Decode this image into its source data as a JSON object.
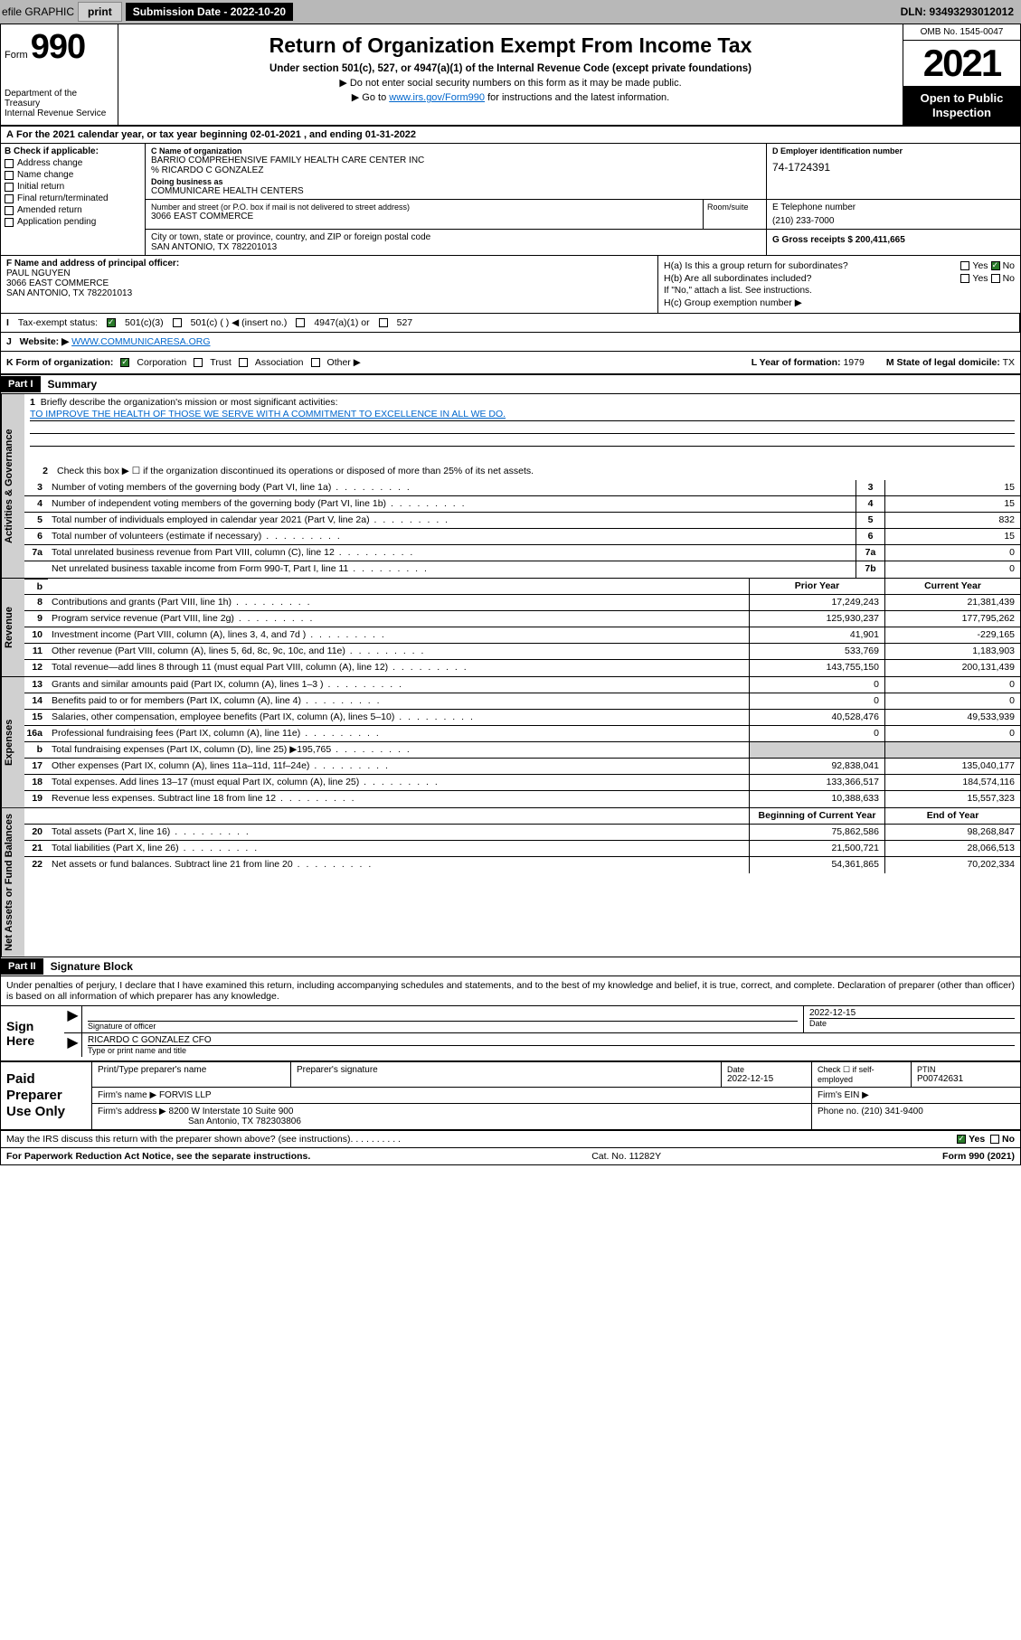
{
  "topbar": {
    "efile_label": "efile GRAPHIC",
    "print_btn": "print",
    "submission_label": "Submission Date - 2022-10-20",
    "dln": "DLN: 93493293012012"
  },
  "header": {
    "form_word": "Form",
    "form_number": "990",
    "dept": "Department of the Treasury\nInternal Revenue Service",
    "title": "Return of Organization Exempt From Income Tax",
    "sub": "Under section 501(c), 527, or 4947(a)(1) of the Internal Revenue Code (except private foundations)",
    "note1": "Do not enter social security numbers on this form as it may be made public.",
    "note2_pre": "Go to ",
    "note2_link": "www.irs.gov/Form990",
    "note2_post": " for instructions and the latest information.",
    "omb": "OMB No. 1545-0047",
    "year": "2021",
    "open_public": "Open to Public Inspection"
  },
  "period": "For the 2021 calendar year, or tax year beginning 02-01-2021   , and ending 01-31-2022",
  "box_b": {
    "label": "B Check if applicable:",
    "items": [
      "Address change",
      "Name change",
      "Initial return",
      "Final return/terminated",
      "Amended return",
      "Application pending"
    ]
  },
  "box_c": {
    "name_label": "C Name of organization",
    "org_name": "BARRIO COMPREHENSIVE FAMILY HEALTH CARE CENTER INC",
    "care_of": "% RICARDO C GONZALEZ",
    "dba_label": "Doing business as",
    "dba": "COMMUNICARE HEALTH CENTERS",
    "addr_label": "Number and street (or P.O. box if mail is not delivered to street address)",
    "addr": "3066 EAST COMMERCE",
    "room_label": "Room/suite",
    "city_label": "City or town, state or province, country, and ZIP or foreign postal code",
    "city": "SAN ANTONIO, TX  782201013"
  },
  "box_d": {
    "label": "D Employer identification number",
    "value": "74-1724391"
  },
  "box_e": {
    "label": "E Telephone number",
    "value": "(210) 233-7000"
  },
  "box_g": {
    "label": "G Gross receipts $",
    "value": "200,411,665"
  },
  "box_f": {
    "label": "F Name and address of principal officer:",
    "name": "PAUL NGUYEN",
    "addr1": "3066 EAST COMMERCE",
    "addr2": "SAN ANTONIO, TX  782201013"
  },
  "box_h": {
    "ha": "H(a)  Is this a group return for subordinates?",
    "hb": "H(b)  Are all subordinates included?",
    "hb_note": "If \"No,\" attach a list. See instructions.",
    "hc": "H(c)  Group exemption number ▶"
  },
  "row_i": {
    "label": "Tax-exempt status:",
    "opt1": "501(c)(3)",
    "opt2": "501(c) (   ) ◀ (insert no.)",
    "opt3": "4947(a)(1) or",
    "opt4": "527"
  },
  "row_j": {
    "label": "Website: ▶",
    "value": "WWW.COMMUNICARESA.ORG"
  },
  "row_k": {
    "label": "K Form of organization:",
    "opts": [
      "Corporation",
      "Trust",
      "Association",
      "Other ▶"
    ]
  },
  "row_l": {
    "label": "L Year of formation:",
    "value": "1979"
  },
  "row_m": {
    "label": "M State of legal domicile:",
    "value": "TX"
  },
  "part1": {
    "hdr": "Part I",
    "title": "Summary"
  },
  "tabs": {
    "gov": "Activities & Governance",
    "rev": "Revenue",
    "exp": "Expenses",
    "net": "Net Assets or Fund Balances"
  },
  "summary": {
    "line1_label": "Briefly describe the organization's mission or most significant activities:",
    "mission": "TO IMPROVE THE HEALTH OF THOSE WE SERVE WITH A COMMITMENT TO EXCELLENCE IN ALL WE DO.",
    "line2": "Check this box ▶ ☐  if the organization discontinued its operations or disposed of more than 25% of its net assets.",
    "lines_gov": [
      {
        "n": "3",
        "t": "Number of voting members of the governing body (Part VI, line 1a)",
        "box": "3",
        "v": "15"
      },
      {
        "n": "4",
        "t": "Number of independent voting members of the governing body (Part VI, line 1b)",
        "box": "4",
        "v": "15"
      },
      {
        "n": "5",
        "t": "Total number of individuals employed in calendar year 2021 (Part V, line 2a)",
        "box": "5",
        "v": "832"
      },
      {
        "n": "6",
        "t": "Total number of volunteers (estimate if necessary)",
        "box": "6",
        "v": "15"
      },
      {
        "n": "7a",
        "t": "Total unrelated business revenue from Part VIII, column (C), line 12",
        "box": "7a",
        "v": "0"
      },
      {
        "n": "",
        "t": "Net unrelated business taxable income from Form 990-T, Part I, line 11",
        "box": "7b",
        "v": "0"
      }
    ],
    "col_prior": "Prior Year",
    "col_current": "Current Year",
    "lines_rev": [
      {
        "n": "8",
        "t": "Contributions and grants (Part VIII, line 1h)",
        "p": "17,249,243",
        "c": "21,381,439"
      },
      {
        "n": "9",
        "t": "Program service revenue (Part VIII, line 2g)",
        "p": "125,930,237",
        "c": "177,795,262"
      },
      {
        "n": "10",
        "t": "Investment income (Part VIII, column (A), lines 3, 4, and 7d )",
        "p": "41,901",
        "c": "-229,165"
      },
      {
        "n": "11",
        "t": "Other revenue (Part VIII, column (A), lines 5, 6d, 8c, 9c, 10c, and 11e)",
        "p": "533,769",
        "c": "1,183,903"
      },
      {
        "n": "12",
        "t": "Total revenue—add lines 8 through 11 (must equal Part VIII, column (A), line 12)",
        "p": "143,755,150",
        "c": "200,131,439"
      }
    ],
    "lines_exp": [
      {
        "n": "13",
        "t": "Grants and similar amounts paid (Part IX, column (A), lines 1–3 )",
        "p": "0",
        "c": "0"
      },
      {
        "n": "14",
        "t": "Benefits paid to or for members (Part IX, column (A), line 4)",
        "p": "0",
        "c": "0"
      },
      {
        "n": "15",
        "t": "Salaries, other compensation, employee benefits (Part IX, column (A), lines 5–10)",
        "p": "40,528,476",
        "c": "49,533,939"
      },
      {
        "n": "16a",
        "t": "Professional fundraising fees (Part IX, column (A), line 11e)",
        "p": "0",
        "c": "0"
      },
      {
        "n": "b",
        "t": "Total fundraising expenses (Part IX, column (D), line 25) ▶195,765",
        "p": "",
        "c": "",
        "shade": true
      },
      {
        "n": "17",
        "t": "Other expenses (Part IX, column (A), lines 11a–11d, 11f–24e)",
        "p": "92,838,041",
        "c": "135,040,177"
      },
      {
        "n": "18",
        "t": "Total expenses. Add lines 13–17 (must equal Part IX, column (A), line 25)",
        "p": "133,366,517",
        "c": "184,574,116"
      },
      {
        "n": "19",
        "t": "Revenue less expenses. Subtract line 18 from line 12",
        "p": "10,388,633",
        "c": "15,557,323"
      }
    ],
    "col_begin": "Beginning of Current Year",
    "col_end": "End of Year",
    "lines_net": [
      {
        "n": "20",
        "t": "Total assets (Part X, line 16)",
        "p": "75,862,586",
        "c": "98,268,847"
      },
      {
        "n": "21",
        "t": "Total liabilities (Part X, line 26)",
        "p": "21,500,721",
        "c": "28,066,513"
      },
      {
        "n": "22",
        "t": "Net assets or fund balances. Subtract line 21 from line 20",
        "p": "54,361,865",
        "c": "70,202,334"
      }
    ]
  },
  "part2": {
    "hdr": "Part II",
    "title": "Signature Block"
  },
  "sig": {
    "intro": "Under penalties of perjury, I declare that I have examined this return, including accompanying schedules and statements, and to the best of my knowledge and belief, it is true, correct, and complete. Declaration of preparer (other than officer) is based on all information of which preparer has any knowledge.",
    "sign_here": "Sign Here",
    "sig_officer_label": "Signature of officer",
    "date_label": "Date",
    "date_value": "2022-12-15",
    "name_title": "RICARDO C GONZALEZ  CFO",
    "name_title_label": "Type or print name and title"
  },
  "prep": {
    "label": "Paid Preparer Use Only",
    "r1": {
      "c1": "Print/Type preparer's name",
      "c2": "Preparer's signature",
      "c3_label": "Date",
      "c3_val": "2022-12-15",
      "c4_label": "Check ☐ if self-employed",
      "c5_label": "PTIN",
      "c5_val": "P00742631"
    },
    "r2": {
      "label": "Firm's name    ▶",
      "val": "FORVIS LLP",
      "ein_label": "Firm's EIN ▶"
    },
    "r3": {
      "label": "Firm's address ▶",
      "val1": "8200 W Interstate 10 Suite 900",
      "val2": "San Antonio, TX  782303806",
      "phone_label": "Phone no.",
      "phone_val": "(210) 341-9400"
    }
  },
  "footer": {
    "discuss": "May the IRS discuss this return with the preparer shown above? (see instructions)",
    "yes": "Yes",
    "no": "No",
    "paperwork": "For Paperwork Reduction Act Notice, see the separate instructions.",
    "cat": "Cat. No. 11282Y",
    "form": "Form 990 (2021)"
  }
}
